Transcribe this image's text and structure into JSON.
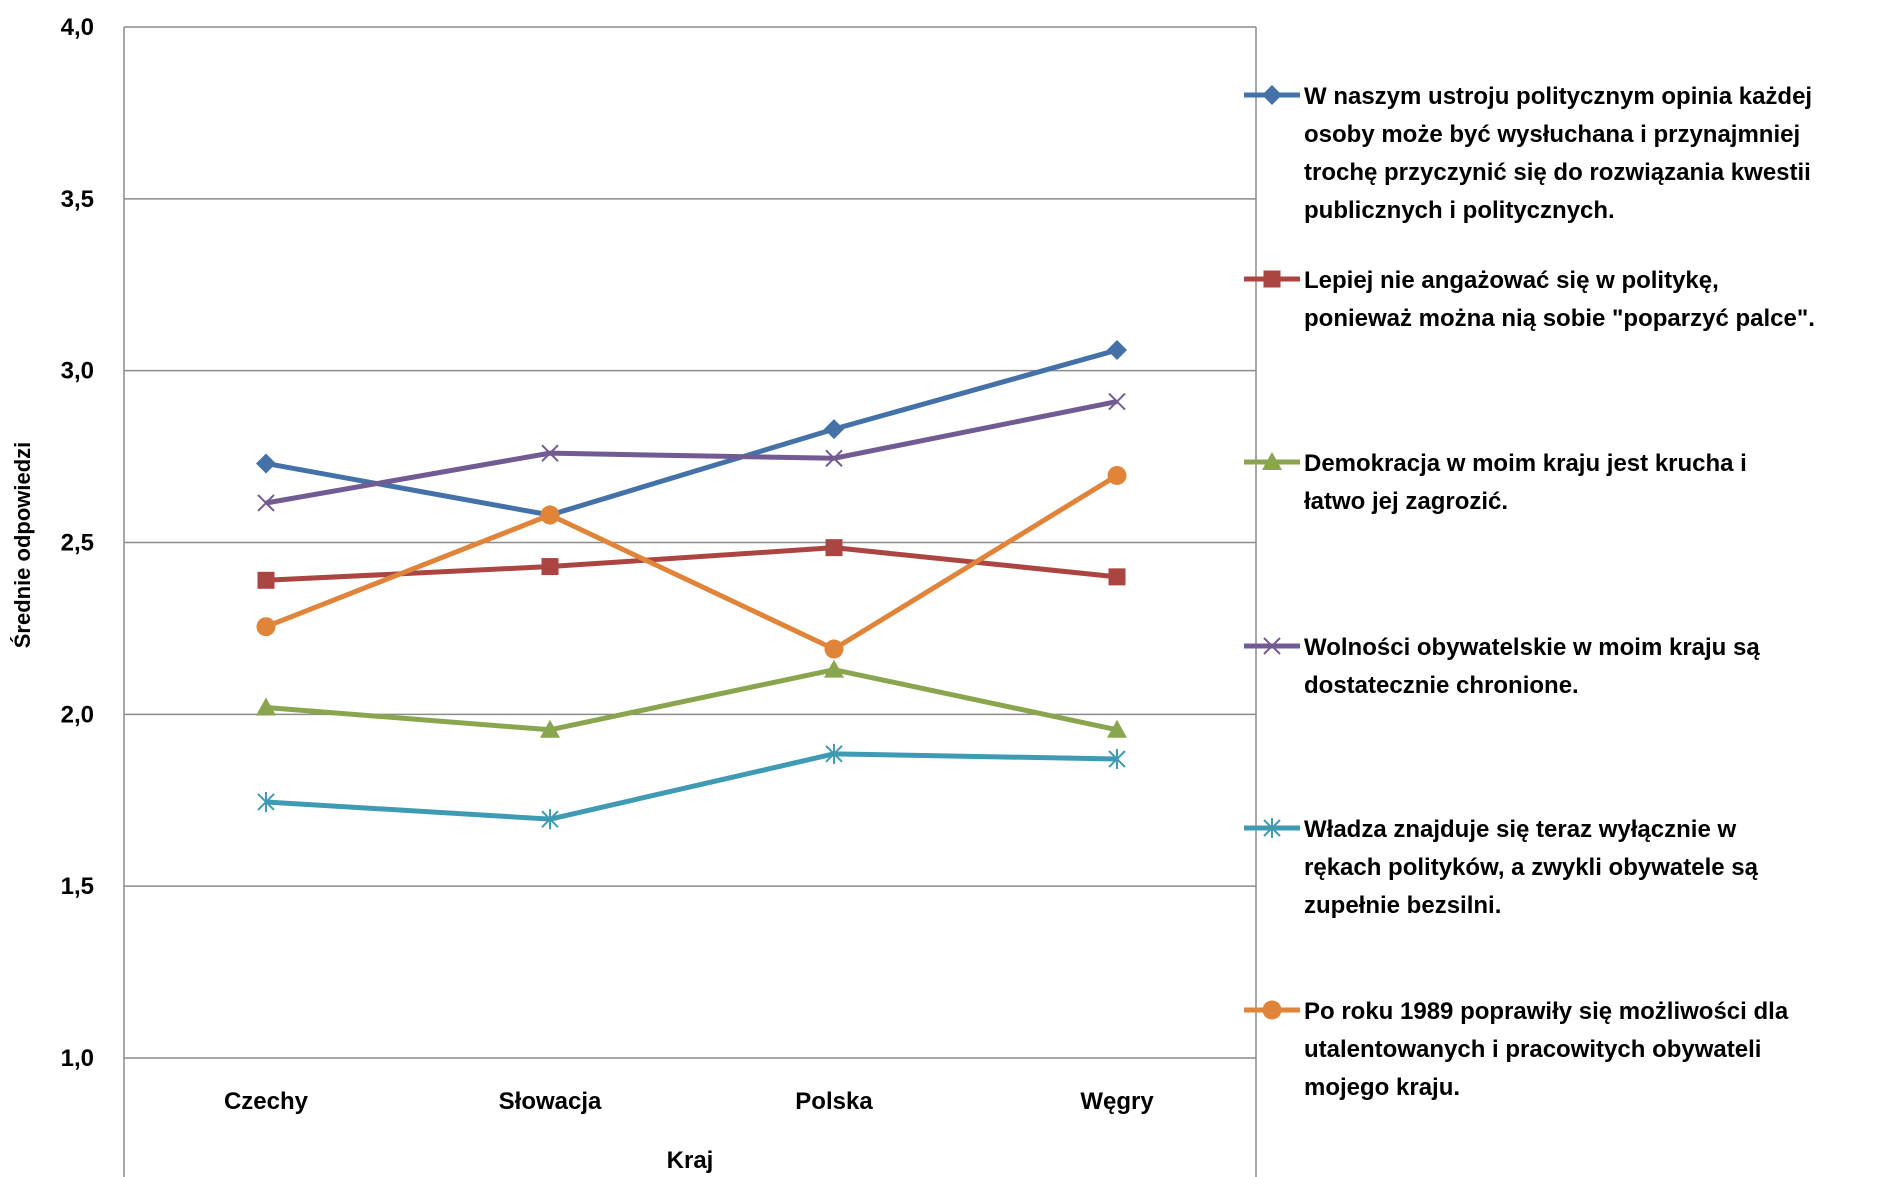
{
  "chart_data": {
    "type": "line",
    "title": "",
    "xlabel": "Kraj",
    "ylabel": "Średnie odpowiedzi",
    "ylim": [
      1.0,
      4.0
    ],
    "yticks": [
      "1,0",
      "1,5",
      "2,0",
      "2,5",
      "3,0",
      "3,5",
      "4,0"
    ],
    "ytick_values": [
      1.0,
      1.5,
      2.0,
      2.5,
      3.0,
      3.5,
      4.0
    ],
    "categories": [
      "Czechy",
      "Słowacja",
      "Polska",
      "Węgry"
    ],
    "grid": true,
    "legend_position": "right",
    "series": [
      {
        "name": "W naszym ustroju politycznym opinia każdej osoby może być wysłuchana i przynajmniej trochę przyczynić się do rozwiązania kwestii publicznych i politycznych.",
        "legend_lines": [
          "W naszym ustroju politycznym opinia każdej",
          "osoby może być wysłuchana i przynajmniej",
          "trochę przyczynić się do rozwiązania kwestii",
          "publicznych i politycznych."
        ],
        "values": [
          2.73,
          2.58,
          2.83,
          3.06
        ],
        "color": "#4472a8",
        "marker": "diamond"
      },
      {
        "name": "Lepiej nie angażować się w politykę, ponieważ można nią sobie \"poparzyć palce\".",
        "legend_lines": [
          "Lepiej nie angażować się w politykę,",
          "ponieważ można nią sobie \"poparzyć palce\"."
        ],
        "values": [
          2.39,
          2.43,
          2.485,
          2.4
        ],
        "color": "#ab4542",
        "marker": "square"
      },
      {
        "name": "Demokracja w moim kraju jest krucha i łatwo jej zagrozić.",
        "legend_lines": [
          "Demokracja w moim kraju jest krucha i",
          "łatwo jej zagrozić."
        ],
        "values": [
          2.02,
          1.955,
          2.13,
          1.955
        ],
        "color": "#89a54e",
        "marker": "triangle"
      },
      {
        "name": "Wolności obywatelskie w moim kraju są dostatecznie chronione.",
        "legend_lines": [
          "Wolności obywatelskie w moim kraju są",
          "dostatecznie chronione."
        ],
        "values": [
          2.615,
          2.76,
          2.745,
          2.91
        ],
        "color": "#725a93",
        "marker": "x"
      },
      {
        "name": "Władza znajduje się teraz wyłącznie w rękach polityków, a zwykli obywatele są zupełnie bezsilni.",
        "legend_lines": [
          "Władza znajduje się teraz wyłącznie w",
          "rękach polityków, a zwykli obywatele są",
          "zupełnie bezsilni."
        ],
        "values": [
          1.745,
          1.695,
          1.885,
          1.87
        ],
        "color": "#3e9bb3",
        "marker": "star"
      },
      {
        "name": "Po roku 1989 poprawiły się możliwości dla utalentowanych i pracowitych obywateli mojego kraju.",
        "legend_lines": [
          "Po roku 1989 poprawiły się możliwości dla",
          "utalentowanych i pracowitych obywateli",
          "mojego kraju."
        ],
        "values": [
          2.255,
          2.58,
          2.19,
          2.695
        ],
        "color": "#e0843a",
        "marker": "circle"
      }
    ]
  }
}
